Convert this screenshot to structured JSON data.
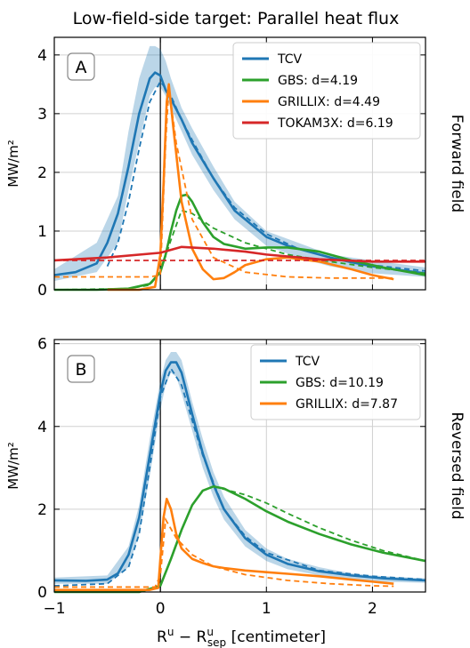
{
  "figure": {
    "title": "Low-field-side target: Parallel heat flux",
    "xlabel_main": "R",
    "xlabel_main_sup": "u",
    "xlabel_minus": " − R",
    "xlabel_sub": "sep",
    "xlabel_sup2": "u",
    "xlabel_unit": " [centimeter]",
    "xticks": [
      "−1",
      "0",
      "1",
      "2"
    ]
  },
  "chart_data": [
    {
      "type": "line",
      "panel_label": "A",
      "side_label": "Forward field",
      "ylabel": "MW/m²",
      "xlim": [
        -1,
        2.5
      ],
      "ylim": [
        0,
        4.3
      ],
      "yticks": [
        0,
        1,
        2,
        3,
        4
      ],
      "ytick_labels": [
        "0",
        "1",
        "2",
        "3",
        "4"
      ],
      "xgrid": [
        -1,
        0,
        1,
        2
      ],
      "ygrid": [
        0,
        1,
        2,
        3,
        4
      ],
      "legend_placement": "top-right",
      "series": [
        {
          "name": "TCV",
          "color": "#1f77b4",
          "band": {
            "x": [
              -1,
              -0.6,
              -0.4,
              -0.3,
              -0.2,
              -0.1,
              -0.05,
              0,
              0.05,
              0.1,
              0.2,
              0.3,
              0.5,
              0.7,
              1.0,
              1.3,
              1.6,
              2.0,
              2.5
            ],
            "lower": [
              0.15,
              0.3,
              0.8,
              1.7,
              2.5,
              3.3,
              3.45,
              3.45,
              3.3,
              3.1,
              2.7,
              2.3,
              1.7,
              1.2,
              0.75,
              0.55,
              0.4,
              0.28,
              0.22
            ],
            "upper": [
              0.35,
              0.8,
              1.6,
              2.7,
              3.6,
              4.15,
              4.15,
              4.1,
              3.9,
              3.6,
              3.1,
              2.75,
              2.1,
              1.5,
              1.0,
              0.8,
              0.6,
              0.5,
              0.38
            ]
          },
          "x": [
            -1,
            -0.8,
            -0.6,
            -0.5,
            -0.4,
            -0.3,
            -0.2,
            -0.1,
            -0.05,
            0,
            0.05,
            0.1,
            0.2,
            0.3,
            0.4,
            0.5,
            0.7,
            0.9,
            1.0,
            1.2,
            1.4,
            1.6,
            1.8,
            2.0,
            2.2,
            2.5
          ],
          "y": [
            0.25,
            0.3,
            0.45,
            0.8,
            1.3,
            2.1,
            3.0,
            3.6,
            3.7,
            3.65,
            3.4,
            3.25,
            2.9,
            2.5,
            2.2,
            1.9,
            1.35,
            1.05,
            0.9,
            0.75,
            0.65,
            0.55,
            0.47,
            0.4,
            0.35,
            0.28
          ],
          "fit": {
            "x": [
              -0.5,
              -0.4,
              -0.3,
              -0.2,
              -0.1,
              0,
              0.1,
              0.2,
              0.3,
              0.5,
              0.7,
              1.0,
              1.3,
              1.6,
              2.0,
              2.5
            ],
            "y": [
              0.4,
              0.8,
              1.5,
              2.4,
              3.2,
              3.55,
              3.3,
              2.9,
              2.55,
              1.9,
              1.4,
              0.95,
              0.7,
              0.55,
              0.42,
              0.32
            ]
          }
        },
        {
          "name": "GBS: d=4.19",
          "color": "#2ca02c",
          "x": [
            -1,
            -0.6,
            -0.3,
            -0.1,
            0,
            0.05,
            0.1,
            0.15,
            0.2,
            0.25,
            0.3,
            0.4,
            0.5,
            0.6,
            0.8,
            1.0,
            1.2,
            1.5,
            1.8,
            2.1,
            2.5
          ],
          "y": [
            0.0,
            0.0,
            0.02,
            0.1,
            0.3,
            0.6,
            1.0,
            1.35,
            1.6,
            1.62,
            1.5,
            1.15,
            0.9,
            0.78,
            0.7,
            0.72,
            0.72,
            0.65,
            0.5,
            0.38,
            0.25
          ],
          "fit": {
            "x": [
              -1,
              -0.3,
              -0.1,
              0,
              0.1,
              0.2,
              0.3,
              0.5,
              0.8,
              1.2,
              1.6,
              2.0,
              2.5
            ],
            "y": [
              0.0,
              0.02,
              0.08,
              0.3,
              0.85,
              1.35,
              1.3,
              1.05,
              0.8,
              0.6,
              0.48,
              0.38,
              0.28
            ]
          }
        },
        {
          "name": "GRILLIX: d=4.49",
          "color": "#ff7f0e",
          "x": [
            -0.5,
            -0.2,
            -0.05,
            0,
            0.03,
            0.06,
            0.08,
            0.12,
            0.2,
            0.3,
            0.4,
            0.5,
            0.6,
            0.7,
            0.8,
            1.0,
            1.2,
            1.5,
            1.8,
            2.0,
            2.2
          ],
          "y": [
            0.0,
            0.0,
            0.05,
            0.6,
            1.8,
            3.2,
            3.5,
            2.8,
            1.5,
            0.7,
            0.35,
            0.18,
            0.2,
            0.3,
            0.42,
            0.52,
            0.55,
            0.48,
            0.35,
            0.25,
            0.18
          ],
          "fit": {
            "x": [
              -1,
              -0.1,
              0,
              0.05,
              0.08,
              0.15,
              0.3,
              0.5,
              0.8,
              1.2,
              1.6,
              2.0,
              2.2
            ],
            "y": [
              0.22,
              0.22,
              0.25,
              2.5,
              3.45,
              2.5,
              1.2,
              0.55,
              0.3,
              0.22,
              0.2,
              0.2,
              0.2
            ]
          }
        },
        {
          "name": "TOKAM3X: d=6.19",
          "color": "#d62728",
          "x": [
            -1,
            -0.5,
            0,
            0.2,
            0.5,
            0.8,
            1.0,
            1.5,
            2.0,
            2.5
          ],
          "y": [
            0.5,
            0.55,
            0.63,
            0.73,
            0.7,
            0.65,
            0.6,
            0.52,
            0.48,
            0.48
          ],
          "fit": {
            "x": [
              -1,
              2.5
            ],
            "y": [
              0.5,
              0.5
            ]
          }
        }
      ]
    },
    {
      "type": "line",
      "panel_label": "B",
      "side_label": "Reversed field",
      "ylabel": "MW/m²",
      "xlim": [
        -1,
        2.5
      ],
      "ylim": [
        0,
        6.1
      ],
      "yticks": [
        0,
        2,
        4,
        6
      ],
      "ytick_labels": [
        "0",
        "2",
        "4",
        "6"
      ],
      "xgrid": [
        -1,
        0,
        1,
        2
      ],
      "ygrid": [
        0,
        2,
        4,
        6
      ],
      "legend_placement": "top-right",
      "series": [
        {
          "name": "TCV",
          "color": "#1f77b4",
          "band": {
            "x": [
              -1,
              -0.5,
              -0.3,
              -0.2,
              -0.1,
              0,
              0.05,
              0.1,
              0.15,
              0.2,
              0.3,
              0.4,
              0.5,
              0.6,
              0.8,
              1.0,
              1.2,
              1.5,
              1.8,
              2.1,
              2.5
            ],
            "lower": [
              0.2,
              0.2,
              0.6,
              1.4,
              2.8,
              4.4,
              5.0,
              5.3,
              5.2,
              4.8,
              3.9,
              3.0,
              2.3,
              1.75,
              1.1,
              0.75,
              0.55,
              0.4,
              0.3,
              0.25,
              0.22
            ],
            "upper": [
              0.35,
              0.4,
              1.1,
              2.1,
              3.7,
              5.1,
              5.6,
              5.8,
              5.8,
              5.6,
              4.6,
              3.7,
              2.9,
              2.3,
              1.5,
              1.05,
              0.8,
              0.6,
              0.45,
              0.38,
              0.33
            ]
          },
          "x": [
            -1,
            -0.7,
            -0.5,
            -0.4,
            -0.3,
            -0.2,
            -0.1,
            0,
            0.05,
            0.1,
            0.15,
            0.2,
            0.3,
            0.4,
            0.5,
            0.6,
            0.8,
            1.0,
            1.2,
            1.5,
            1.8,
            2.1,
            2.5
          ],
          "y": [
            0.28,
            0.27,
            0.3,
            0.45,
            0.9,
            1.8,
            3.3,
            4.8,
            5.35,
            5.55,
            5.55,
            5.3,
            4.3,
            3.35,
            2.6,
            2.0,
            1.3,
            0.9,
            0.68,
            0.5,
            0.4,
            0.33,
            0.28
          ],
          "fit": {
            "x": [
              -1,
              -0.5,
              -0.3,
              -0.2,
              -0.1,
              0,
              0.1,
              0.2,
              0.4,
              0.6,
              0.8,
              1.0,
              1.5,
              2.0,
              2.5
            ],
            "y": [
              0.15,
              0.2,
              0.6,
              1.4,
              3.0,
              4.7,
              5.4,
              5.0,
              3.3,
              2.0,
              1.35,
              0.95,
              0.52,
              0.38,
              0.3
            ]
          }
        },
        {
          "name": "GBS: d=10.19",
          "color": "#2ca02c",
          "x": [
            -1,
            -0.2,
            0,
            0.1,
            0.2,
            0.3,
            0.4,
            0.5,
            0.6,
            0.8,
            1.0,
            1.2,
            1.5,
            1.8,
            2.1,
            2.5
          ],
          "y": [
            0.0,
            0.0,
            0.15,
            0.8,
            1.5,
            2.1,
            2.45,
            2.55,
            2.5,
            2.25,
            1.95,
            1.7,
            1.4,
            1.15,
            0.95,
            0.75
          ],
          "fit": {
            "x": [
              0.5,
              0.8,
              1.0,
              1.2,
              1.5,
              1.8,
              2.1,
              2.5
            ],
            "y": [
              2.55,
              2.35,
              2.15,
              1.9,
              1.55,
              1.25,
              1.0,
              0.75
            ]
          }
        },
        {
          "name": "GRILLIX: d=7.87",
          "color": "#ff7f0e",
          "x": [
            -1,
            -0.1,
            -0.02,
            0,
            0.03,
            0.06,
            0.1,
            0.15,
            0.2,
            0.3,
            0.4,
            0.5,
            0.6,
            0.8,
            1.0,
            1.2,
            1.5,
            1.8,
            2.0,
            2.2
          ],
          "y": [
            0.05,
            0.05,
            0.1,
            0.8,
            1.8,
            2.25,
            2.0,
            1.4,
            1.05,
            0.8,
            0.7,
            0.62,
            0.58,
            0.52,
            0.48,
            0.44,
            0.38,
            0.3,
            0.25,
            0.2
          ],
          "fit": {
            "x": [
              -1,
              -0.05,
              0,
              0.05,
              0.15,
              0.3,
              0.5,
              0.8,
              1.2,
              1.6,
              2.0,
              2.2
            ],
            "y": [
              0.12,
              0.12,
              0.4,
              1.75,
              1.3,
              0.9,
              0.62,
              0.42,
              0.28,
              0.2,
              0.15,
              0.14
            ]
          }
        }
      ]
    }
  ]
}
